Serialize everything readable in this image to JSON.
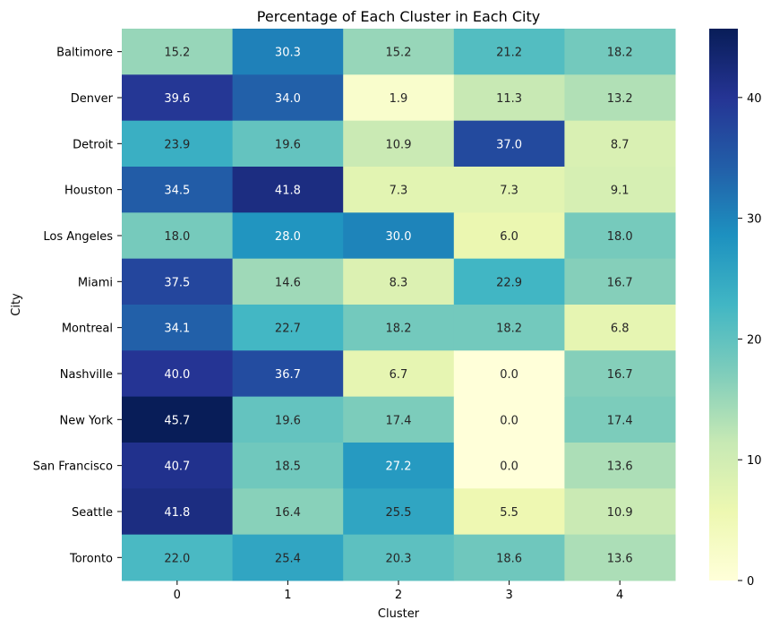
{
  "chart_data": {
    "type": "heatmap",
    "title": "Percentage of Each Cluster in Each City",
    "xlabel": "Cluster",
    "ylabel": "City",
    "x_categories": [
      "0",
      "1",
      "2",
      "3",
      "4"
    ],
    "y_categories": [
      "Baltimore",
      "Denver",
      "Detroit",
      "Houston",
      "Los Angeles",
      "Miami",
      "Montreal",
      "Nashville",
      "New York",
      "San Francisco",
      "Seattle",
      "Toronto"
    ],
    "values": [
      [
        15.2,
        30.3,
        15.2,
        21.2,
        18.2
      ],
      [
        39.6,
        34.0,
        1.9,
        11.3,
        13.2
      ],
      [
        23.9,
        19.6,
        10.9,
        37.0,
        8.7
      ],
      [
        34.5,
        41.8,
        7.3,
        7.3,
        9.1
      ],
      [
        18.0,
        28.0,
        30.0,
        6.0,
        18.0
      ],
      [
        37.5,
        14.6,
        8.3,
        22.9,
        16.7
      ],
      [
        34.1,
        22.7,
        18.2,
        18.2,
        6.8
      ],
      [
        40.0,
        36.7,
        6.7,
        0.0,
        16.7
      ],
      [
        45.7,
        19.6,
        17.4,
        0.0,
        17.4
      ],
      [
        40.7,
        18.5,
        27.2,
        0.0,
        13.6
      ],
      [
        41.8,
        16.4,
        25.5,
        5.5,
        10.9
      ],
      [
        22.0,
        25.4,
        20.3,
        18.6,
        13.6
      ]
    ],
    "colorbar": {
      "min": 0,
      "max": 45.7,
      "ticks": [
        0,
        10,
        20,
        30,
        40
      ]
    },
    "colormap": "YlGnBu",
    "colormap_stops": [
      "#ffffd9",
      "#edf8b1",
      "#c7e9b4",
      "#7fcdbb",
      "#41b6c4",
      "#1d91c0",
      "#225ea8",
      "#253494",
      "#081d58"
    ],
    "value_format": "one-decimal",
    "grid": false
  }
}
